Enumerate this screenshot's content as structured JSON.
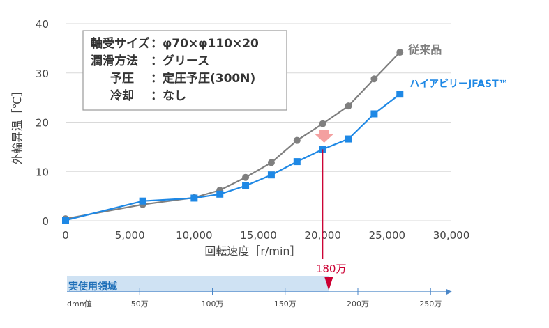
{
  "chart_data": {
    "type": "line",
    "xlabel": "回転速度［r/min］",
    "ylabel": "外輪昇温［℃］",
    "xlim": [
      0,
      30000
    ],
    "ylim": [
      0,
      40
    ],
    "x_ticks": [
      0,
      5000,
      10000,
      15000,
      20000,
      25000,
      30000
    ],
    "x_tick_labels": [
      "0",
      "5,000",
      "10,000",
      "15,000",
      "20,000",
      "25,000",
      "30,000"
    ],
    "y_ticks": [
      0,
      10,
      20,
      30,
      40
    ],
    "y_tick_labels": [
      "0",
      "10",
      "20",
      "30",
      "40"
    ],
    "grid": "horizontal",
    "series": [
      {
        "name": "従来品",
        "color": "#7f7f7f",
        "marker": "circle",
        "x": [
          0,
          6000,
          10000,
          12000,
          14000,
          16000,
          18000,
          20000,
          22000,
          24000,
          26000
        ],
        "values": [
          0.4,
          3.3,
          4.7,
          6.2,
          8.8,
          11.8,
          16.3,
          19.7,
          23.3,
          28.8,
          34.2
        ]
      },
      {
        "name": "ハイアビリーJFAST™",
        "color": "#1e88e5",
        "marker": "square",
        "x": [
          0,
          6000,
          10000,
          12000,
          14000,
          16000,
          18000,
          20000,
          22000,
          24000,
          26000
        ],
        "values": [
          0.1,
          4.0,
          4.6,
          5.4,
          7.1,
          9.3,
          12.0,
          14.5,
          16.6,
          21.7,
          25.7
        ]
      }
    ],
    "infobox": [
      {
        "key": "軸受サイズ",
        "value": "：φ70×φ110×20"
      },
      {
        "key": "潤滑方法",
        "value": "：グリース"
      },
      {
        "key": "予圧",
        "value": "：定圧予圧(300N)"
      },
      {
        "key": "冷却",
        "value": "：なし"
      }
    ],
    "marker_line": {
      "x": 20000,
      "label": "180万"
    },
    "dmn_scale": {
      "label": "dmn値",
      "ticks": [
        50,
        100,
        150,
        200,
        250
      ],
      "tick_labels": [
        "50万",
        "100万",
        "150万",
        "200万",
        "250万"
      ],
      "range_label": "実使用領域",
      "range_end": 180,
      "arrow_color": "#cc0033"
    },
    "colors": {
      "down_arrow": "#f4a0a0",
      "range_fill": "#cfe2f3",
      "range_text": "#1e6fb8",
      "axis_blue": "#4a86c8"
    }
  }
}
